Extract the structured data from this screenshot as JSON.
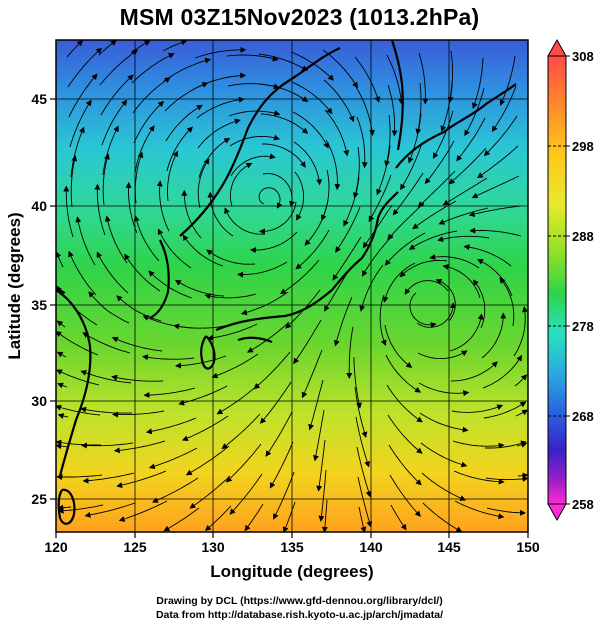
{
  "title": "MSM 03Z15Nov2023 (1013.2hPa)",
  "map": {
    "x_label": "Longitude (degrees)",
    "y_label": "Latitude  (degrees)",
    "lon_range": [
      120,
      150
    ],
    "lat_range": [
      22.5,
      47.6
    ],
    "x_ticks": [
      "120",
      "125",
      "130",
      "135",
      "140",
      "145",
      "150"
    ],
    "y_ticks": [
      "25",
      "30",
      "35",
      "40",
      "45"
    ],
    "grid": true
  },
  "colorbar": {
    "labels": [
      "308",
      "298",
      "288",
      "278",
      "268",
      "258"
    ],
    "min": 258,
    "max": 308,
    "colors": [
      "#ff4a4a",
      "#ff8a2a",
      "#ffc81a",
      "#e8ea2a",
      "#8ee02a",
      "#2ed34a",
      "#2ae0c0",
      "#2aa8e0",
      "#2a60e0",
      "#3a20c8",
      "#a020c8",
      "#ff2ad8"
    ]
  },
  "credits": {
    "line1": "Drawing by DCL (https://www.gfd-dennou.org/library/dcl/)",
    "line2": "Data from http://database.rish.kyoto-u.ac.jp/arch/jmadata/"
  }
}
